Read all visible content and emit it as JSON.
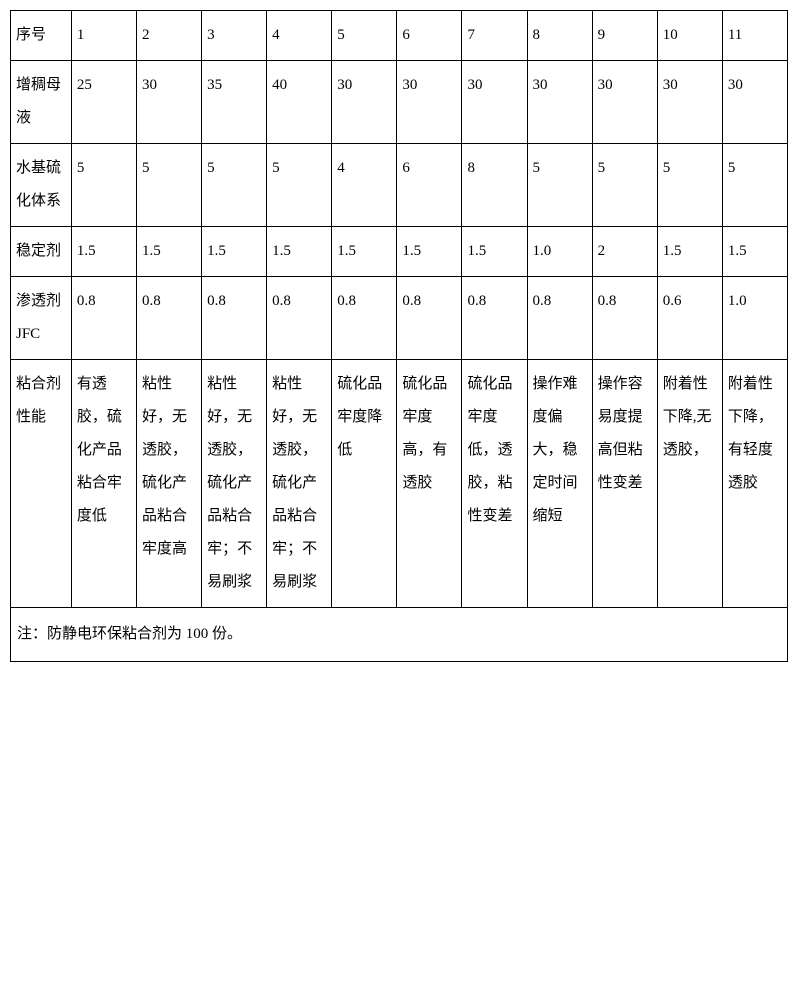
{
  "table": {
    "background_color": "#ffffff",
    "border_color": "#000000",
    "text_color": "#000000",
    "font_size": 15,
    "columns_count": 12,
    "col_widths": {
      "header": 58,
      "data": 62
    },
    "rows": [
      {
        "label": "序号",
        "cells": [
          "1",
          "2",
          "3",
          "4",
          "5",
          "6",
          "7",
          "8",
          "9",
          "10",
          "11"
        ]
      },
      {
        "label": "增稠母液",
        "cells": [
          "25",
          "30",
          "35",
          "40",
          "30",
          "30",
          "30",
          "30",
          "30",
          "30",
          "30"
        ]
      },
      {
        "label": "水基硫化体系",
        "cells": [
          "5",
          "5",
          "5",
          "5",
          "4",
          "6",
          "8",
          "5",
          "5",
          "5",
          "5"
        ]
      },
      {
        "label": "稳定剂",
        "cells": [
          "1.5",
          "1.5",
          "1.5",
          "1.5",
          "1.5",
          "1.5",
          "1.5",
          "1.0",
          "2",
          "1.5",
          "1.5"
        ]
      },
      {
        "label": "渗透剂JFC",
        "cells": [
          "0.8",
          "0.8",
          "0.8",
          "0.8",
          "0.8",
          "0.8",
          "0.8",
          "0.8",
          "0.8",
          "0.6",
          "1.0"
        ]
      },
      {
        "label": "粘合剂性能",
        "cells": [
          "有透胶，硫化产品粘合牢度低",
          "粘性好，无透胶，硫化产品粘合牢度高",
          "粘性好，无透胶，硫化产品粘合牢；不易刷浆",
          "粘性好，无透胶，硫化产品粘合牢；不易刷浆",
          "硫化品牢度降低",
          "硫化品牢度高，有透胶",
          "硫化品牢度低，透胶，粘性变差",
          "操作难度偏大，稳定时间缩短",
          "操作容易度提高但粘性变差",
          "附着性下降,无透胶，",
          "附着性下降，有轻度透胶"
        ]
      }
    ],
    "footnote": "注：防静电环保粘合剂为 100 份。"
  }
}
